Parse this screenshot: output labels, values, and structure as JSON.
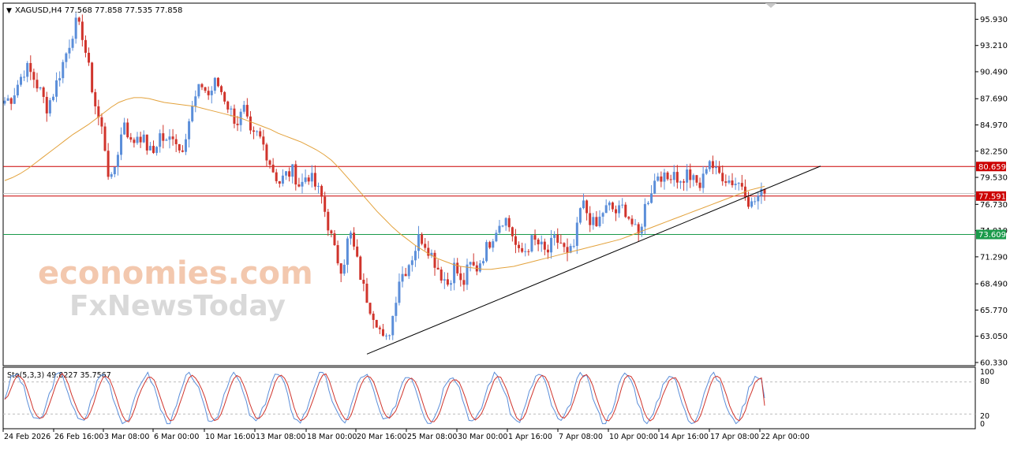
{
  "header": {
    "symbol_line": "XAGUSD,H4  77.568 77.858 77.535 77.858",
    "menu_glyph": "▼"
  },
  "watermark": {
    "line1": "economies.com",
    "line2": "FxNewsToday"
  },
  "chart_data": [
    {
      "type": "candlestick",
      "symbol": "XAGUSD",
      "timeframe": "H4",
      "ohlc_readout": {
        "open": 77.568,
        "high": 77.858,
        "low": 77.535,
        "close": 77.858
      },
      "ylim": [
        60.0,
        97.6
      ],
      "y_ticks": [
        "95.930",
        "93.210",
        "90.490",
        "87.690",
        "84.970",
        "82.250",
        "79.530",
        "76.730",
        "74.010",
        "71.290",
        "68.490",
        "65.770",
        "63.050",
        "60.330"
      ],
      "x_ticks": [
        "24 Feb 2026",
        "26 Feb 16:00",
        "3 Mar 08:00",
        "6 Mar 00:00",
        "10 Mar 16:00",
        "13 Mar 08:00",
        "18 Mar 00:00",
        "20 Mar 16:00",
        "25 Mar 08:00",
        "30 Mar 00:00",
        "1 Apr 16:00",
        "7 Apr 08:00",
        "10 Apr 00:00",
        "14 Apr 16:00",
        "17 Apr 08:00",
        "22 Apr 00:00"
      ],
      "close_path": [
        87.5,
        87.8,
        89.5,
        91.0,
        90.0,
        88.5,
        86.8,
        88.5,
        90.8,
        93.0,
        95.5,
        94.5,
        90.5,
        86.5,
        84.0,
        78.5,
        82.0,
        85.5,
        82.8,
        84.2,
        83.0,
        81.8,
        84.0,
        83.0,
        84.2,
        82.0,
        85.0,
        87.5,
        89.2,
        88.0,
        89.5,
        88.2,
        86.5,
        85.2,
        86.5,
        83.5,
        84.0,
        82.5,
        80.5,
        79.0,
        79.8,
        80.2,
        78.5,
        80.0,
        78.8,
        77.5,
        74.5,
        71.5,
        70.0,
        74.0,
        71.0,
        68.0,
        66.0,
        64.5,
        62.0,
        64.5,
        69.0,
        70.0,
        71.5,
        73.5,
        72.5,
        71.0,
        69.5,
        68.5,
        70.5,
        68.0,
        70.5,
        70.0,
        71.5,
        73.0,
        74.5,
        75.5,
        74.0,
        71.5,
        72.0,
        73.0,
        72.5,
        71.5,
        73.0,
        72.8,
        71.2,
        72.5,
        77.0,
        75.5,
        74.2,
        76.0,
        76.5,
        75.8,
        76.5,
        75.0,
        73.2,
        76.5,
        78.5,
        80.2,
        79.0,
        80.5,
        78.8,
        80.0,
        79.0,
        78.5,
        81.8,
        80.0,
        79.8,
        79.2,
        79.0,
        78.8,
        76.5,
        77.5,
        77.858
      ],
      "moving_average": [
        79.2,
        79.5,
        79.9,
        80.4,
        81.0,
        81.6,
        82.2,
        82.8,
        83.4,
        84.0,
        84.5,
        85.0,
        85.6,
        86.2,
        86.8,
        87.3,
        87.6,
        87.8,
        87.8,
        87.7,
        87.5,
        87.3,
        87.2,
        87.1,
        87.0,
        86.9,
        86.7,
        86.5,
        86.3,
        86.1,
        85.9,
        85.7,
        85.4,
        85.1,
        84.8,
        84.5,
        84.1,
        83.8,
        83.5,
        83.2,
        82.8,
        82.4,
        81.9,
        81.3,
        80.5,
        79.6,
        78.7,
        77.8,
        76.9,
        76.0,
        75.2,
        74.4,
        73.7,
        73.1,
        72.5,
        72.0,
        71.5,
        71.1,
        70.8,
        70.5,
        70.3,
        70.2,
        70.1,
        70.0,
        70.0,
        70.1,
        70.2,
        70.3,
        70.5,
        70.7,
        70.9,
        71.1,
        71.3,
        71.5,
        71.7,
        71.9,
        72.1,
        72.3,
        72.5,
        72.7,
        72.9,
        73.1,
        73.4,
        73.7,
        74.0,
        74.3,
        74.6,
        74.9,
        75.2,
        75.5,
        75.8,
        76.1,
        76.4,
        76.7,
        77.0,
        77.3,
        77.6,
        77.9,
        78.2,
        78.4,
        78.6
      ],
      "horizontal_levels": [
        {
          "value": 80.659,
          "label": "80.659",
          "color": "#cc0000"
        },
        {
          "value": 77.591,
          "label": "77.591",
          "color": "#cc0000"
        },
        {
          "value": 73.609,
          "label": "73.609",
          "color": "#1a9a4a"
        }
      ],
      "bid_line": 77.858,
      "trendline": {
        "from": [
          "20 Mar 16:00",
          61.2
        ],
        "to": [
          "22 Apr 00:00",
          80.7
        ]
      },
      "colors": {
        "bull": "#5b8ed9",
        "bear": "#d0342c",
        "ma": "#e3a23c",
        "trendline": "#000000"
      }
    },
    {
      "type": "line",
      "indicator": "Stochastic",
      "params_label": "Sto(5,3,3) 49.8227 35.7567",
      "main_value": 49.8227,
      "signal_value": 35.7567,
      "ylim": [
        0,
        100
      ],
      "y_ticks": [
        "100",
        "80",
        "20",
        "0"
      ],
      "levels": [
        80,
        20
      ],
      "series": [
        {
          "color": "#5b8ed9",
          "role": "main"
        },
        {
          "color": "#d0342c",
          "role": "signal"
        }
      ]
    }
  ]
}
